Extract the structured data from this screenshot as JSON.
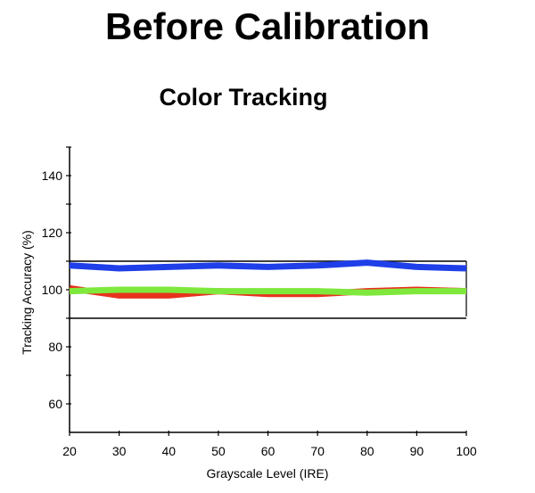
{
  "main_title": "Before Calibration",
  "chart_data": {
    "type": "line",
    "title": "Color Tracking",
    "xlabel": "Grayscale Level (IRE)",
    "ylabel": "Tracking Accuracy (%)",
    "x": [
      20,
      30,
      40,
      50,
      60,
      70,
      80,
      90,
      100
    ],
    "xlim": [
      20,
      100
    ],
    "ylim": [
      50,
      150
    ],
    "x_ticks": [
      20,
      30,
      40,
      50,
      60,
      70,
      80,
      90,
      100
    ],
    "y_ticks": [
      60,
      80,
      100,
      120,
      140
    ],
    "reference_lines": [
      110,
      90
    ],
    "grid": false,
    "series": [
      {
        "color": "#e8321e",
        "values": [
          100.5,
          98,
          98,
          99.5,
          98.5,
          98.5,
          99.5,
          100,
          99.5
        ]
      },
      {
        "color": "#1f3fe8",
        "values": [
          108.5,
          107.5,
          108,
          108.5,
          108,
          108.5,
          109.5,
          108,
          107.5
        ]
      },
      {
        "color": "#7fe83c",
        "values": [
          99.5,
          100,
          100,
          99.5,
          99.5,
          99.5,
          99,
          99.5,
          99.5
        ]
      }
    ]
  }
}
